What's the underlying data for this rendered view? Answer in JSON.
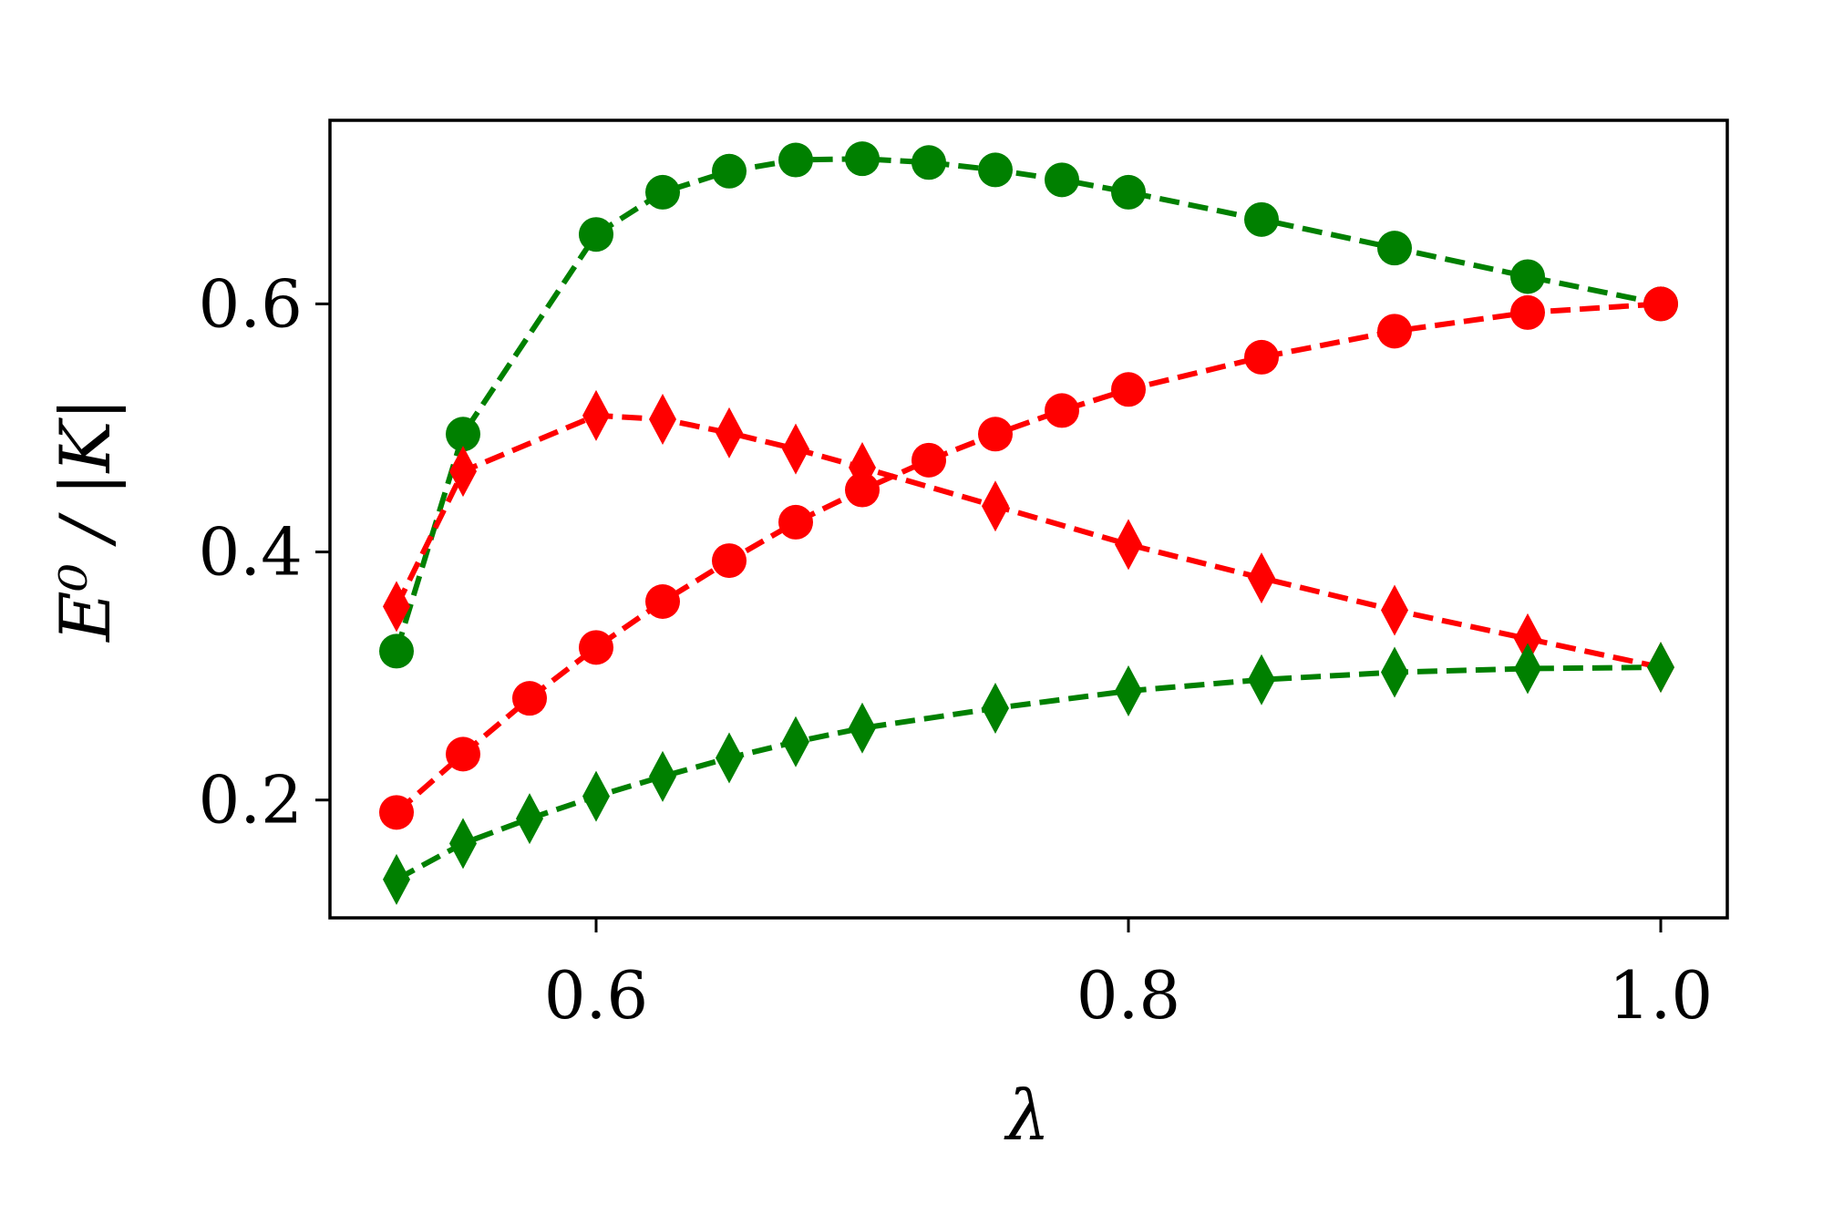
{
  "chart_data": {
    "type": "line",
    "xlabel": "λ",
    "ylabel": "E⁰ / |K|",
    "xlim": [
      0.5,
      1.025
    ],
    "ylim": [
      0.105,
      0.748
    ],
    "xticks": [
      0.6,
      0.8,
      1.0
    ],
    "xtick_labels": [
      "0.6",
      "0.8",
      "1.0"
    ],
    "yticks": [
      0.2,
      0.4,
      0.6
    ],
    "ytick_labels": [
      "0.2",
      "0.4",
      "0.6"
    ],
    "grid": false,
    "series": [
      {
        "color": "#008000",
        "marker": "circle",
        "x": [
          0.525,
          0.55,
          0.6,
          0.625,
          0.65,
          0.675,
          0.7,
          0.725,
          0.75,
          0.775,
          0.8,
          0.85,
          0.9,
          0.95,
          1.0
        ],
        "y": [
          0.32,
          0.495,
          0.656,
          0.69,
          0.707,
          0.716,
          0.717,
          0.714,
          0.708,
          0.7,
          0.69,
          0.668,
          0.645,
          0.622,
          0.6
        ]
      },
      {
        "color": "#ff0000",
        "marker": "circle",
        "x": [
          0.525,
          0.55,
          0.575,
          0.6,
          0.625,
          0.65,
          0.675,
          0.7,
          0.725,
          0.75,
          0.775,
          0.8,
          0.85,
          0.9,
          0.95,
          1.0
        ],
        "y": [
          0.19,
          0.237,
          0.282,
          0.323,
          0.36,
          0.393,
          0.424,
          0.45,
          0.474,
          0.495,
          0.514,
          0.531,
          0.557,
          0.578,
          0.593,
          0.6
        ]
      },
      {
        "color": "#ff0000",
        "marker": "diamond",
        "x": [
          0.525,
          0.55,
          0.6,
          0.625,
          0.65,
          0.675,
          0.7,
          0.75,
          0.8,
          0.85,
          0.9,
          0.95,
          1.0
        ],
        "y": [
          0.356,
          0.465,
          0.51,
          0.507,
          0.496,
          0.483,
          0.468,
          0.437,
          0.406,
          0.379,
          0.353,
          0.33,
          0.307
        ]
      },
      {
        "color": "#008000",
        "marker": "diamond",
        "x": [
          0.525,
          0.55,
          0.575,
          0.6,
          0.625,
          0.65,
          0.675,
          0.7,
          0.75,
          0.8,
          0.85,
          0.9,
          0.95,
          1.0
        ],
        "y": [
          0.136,
          0.165,
          0.185,
          0.203,
          0.219,
          0.234,
          0.247,
          0.258,
          0.274,
          0.288,
          0.297,
          0.303,
          0.306,
          0.307
        ]
      }
    ]
  }
}
